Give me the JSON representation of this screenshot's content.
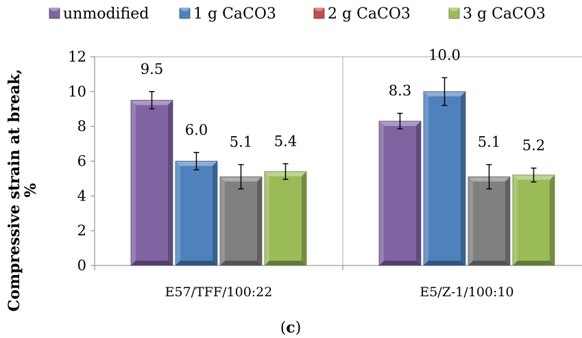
{
  "chart_data": {
    "type": "bar",
    "categories": [
      "E57/TFF/100:22",
      "E5/Z-1/100:10"
    ],
    "series": [
      {
        "name": "unmodified",
        "values": [
          9.5,
          8.3
        ],
        "errors": [
          0.5,
          0.45
        ],
        "color": "#8064a2",
        "labels": [
          "9.5",
          "8.3"
        ]
      },
      {
        "name": "1 g CaCO3",
        "values": [
          6.0,
          10.0
        ],
        "errors": [
          0.5,
          0.8
        ],
        "color": "#4f81bd",
        "labels": [
          "6.0",
          "10.0"
        ]
      },
      {
        "name": "2 g CaCO3",
        "values": [
          5.1,
          5.1
        ],
        "errors": [
          0.7,
          0.7
        ],
        "color": "#808080",
        "legend_color": "#c0504d",
        "labels": [
          "5.1",
          "5.1"
        ]
      },
      {
        "name": "3 g CaCO3",
        "values": [
          5.4,
          5.2
        ],
        "errors": [
          0.45,
          0.4
        ],
        "color": "#9bbb59",
        "labels": [
          "5.4",
          "5.2"
        ]
      }
    ],
    "ylabel_line1": "Compressive strain at break,",
    "ylabel_line2": "%",
    "ylim": [
      0,
      12
    ],
    "yticks": [
      "0",
      "2",
      "4",
      "6",
      "8",
      "10",
      "12"
    ],
    "grid": false,
    "legend_position": "top"
  },
  "caption_open": "(",
  "caption_letter": "c",
  "caption_close": ")"
}
